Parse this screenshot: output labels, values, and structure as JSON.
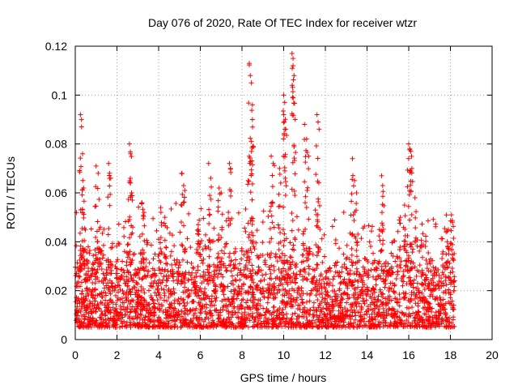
{
  "chart_data": {
    "type": "scatter",
    "title": "Day 076 of 2020, Rate Of TEC Index for receiver wtzr",
    "xlabel": "GPS time / hours",
    "ylabel": "ROTI / TECUs",
    "xlim": [
      0,
      20
    ],
    "ylim": [
      0,
      0.12
    ],
    "grid": true,
    "marker": "+",
    "color": "#ff0000",
    "x_ticks": [
      0,
      2,
      4,
      6,
      8,
      10,
      12,
      14,
      16,
      18,
      20
    ],
    "y_ticks": [
      0,
      0.02,
      0.04,
      0.06,
      0.08,
      0.1,
      0.12
    ],
    "x_tick_labels": [
      "0",
      "2",
      "4",
      "6",
      "8",
      "10",
      "12",
      "14",
      "16",
      "18",
      "20"
    ],
    "y_tick_labels": [
      "0",
      "0.02",
      "0.04",
      "0.06",
      "0.08",
      "0.1",
      "0.12"
    ],
    "data_range": {
      "x_min": 0,
      "x_max": 18.2
    },
    "series": [
      {
        "name": "ROTI",
        "description": "dense band of points mostly between 0.005 and 0.03 TECU/min",
        "band": {
          "low": 0.005,
          "high": 0.028
        },
        "peaks": [
          {
            "x": 0.25,
            "y": 0.092
          },
          {
            "x": 0.3,
            "y": 0.087
          },
          {
            "x": 0.35,
            "y": 0.076
          },
          {
            "x": 0.4,
            "y": 0.062
          },
          {
            "x": 1.0,
            "y": 0.071
          },
          {
            "x": 1.1,
            "y": 0.068
          },
          {
            "x": 1.2,
            "y": 0.046
          },
          {
            "x": 1.6,
            "y": 0.072
          },
          {
            "x": 1.7,
            "y": 0.066
          },
          {
            "x": 2.6,
            "y": 0.08
          },
          {
            "x": 2.65,
            "y": 0.076
          },
          {
            "x": 2.7,
            "y": 0.06
          },
          {
            "x": 3.2,
            "y": 0.056
          },
          {
            "x": 3.3,
            "y": 0.052
          },
          {
            "x": 4.1,
            "y": 0.054
          },
          {
            "x": 4.3,
            "y": 0.05
          },
          {
            "x": 5.1,
            "y": 0.068
          },
          {
            "x": 5.2,
            "y": 0.063
          },
          {
            "x": 5.9,
            "y": 0.047
          },
          {
            "x": 6.4,
            "y": 0.072
          },
          {
            "x": 6.5,
            "y": 0.066
          },
          {
            "x": 6.9,
            "y": 0.062
          },
          {
            "x": 7.0,
            "y": 0.06
          },
          {
            "x": 7.4,
            "y": 0.072
          },
          {
            "x": 7.45,
            "y": 0.07
          },
          {
            "x": 8.35,
            "y": 0.113
          },
          {
            "x": 8.4,
            "y": 0.108
          },
          {
            "x": 8.45,
            "y": 0.105
          },
          {
            "x": 8.5,
            "y": 0.096
          },
          {
            "x": 8.5,
            "y": 0.09
          },
          {
            "x": 8.45,
            "y": 0.081
          },
          {
            "x": 8.3,
            "y": 0.065
          },
          {
            "x": 9.4,
            "y": 0.075
          },
          {
            "x": 9.5,
            "y": 0.072
          },
          {
            "x": 9.8,
            "y": 0.07
          },
          {
            "x": 10.0,
            "y": 0.1
          },
          {
            "x": 10.05,
            "y": 0.097
          },
          {
            "x": 10.0,
            "y": 0.092
          },
          {
            "x": 10.1,
            "y": 0.086
          },
          {
            "x": 10.4,
            "y": 0.117
          },
          {
            "x": 10.45,
            "y": 0.115
          },
          {
            "x": 10.45,
            "y": 0.112
          },
          {
            "x": 10.5,
            "y": 0.108
          },
          {
            "x": 10.55,
            "y": 0.09
          },
          {
            "x": 11.0,
            "y": 0.088
          },
          {
            "x": 11.1,
            "y": 0.082
          },
          {
            "x": 11.2,
            "y": 0.075
          },
          {
            "x": 11.6,
            "y": 0.092
          },
          {
            "x": 11.65,
            "y": 0.089
          },
          {
            "x": 11.7,
            "y": 0.086
          },
          {
            "x": 13.3,
            "y": 0.074
          },
          {
            "x": 13.4,
            "y": 0.065
          },
          {
            "x": 13.5,
            "y": 0.06
          },
          {
            "x": 14.7,
            "y": 0.067
          },
          {
            "x": 14.75,
            "y": 0.063
          },
          {
            "x": 15.6,
            "y": 0.05
          },
          {
            "x": 15.8,
            "y": 0.055
          },
          {
            "x": 16.0,
            "y": 0.08
          },
          {
            "x": 16.05,
            "y": 0.078
          },
          {
            "x": 16.1,
            "y": 0.077
          },
          {
            "x": 16.15,
            "y": 0.07
          },
          {
            "x": 16.3,
            "y": 0.058
          },
          {
            "x": 17.9,
            "y": 0.045
          },
          {
            "x": 18.05,
            "y": 0.051
          },
          {
            "x": 18.1,
            "y": 0.048
          }
        ]
      }
    ]
  }
}
